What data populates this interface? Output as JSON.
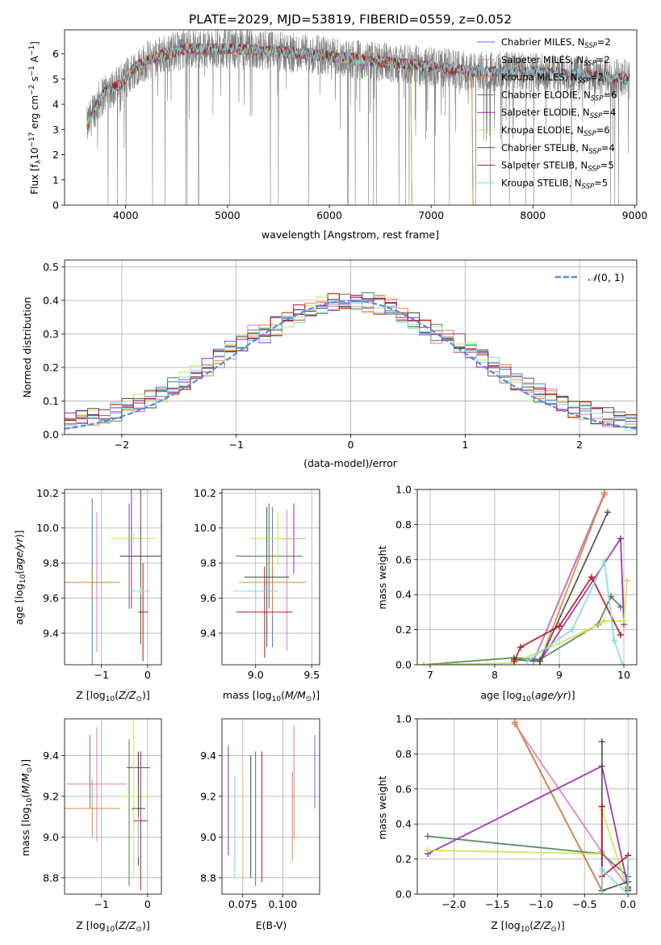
{
  "figure_title": "PLATE=2029, MJD=53819, FIBERID=0559, z=0.052",
  "colors": {
    "series": [
      "#5b6fe0",
      "#e377c2",
      "#e6862c",
      "#4d7f55",
      "#9b27b0",
      "#c9e64a",
      "#4a4a4a",
      "#b8141e",
      "#7fd9e0"
    ],
    "data_spectrum": "#808080",
    "gaussian": "#5b8bd9",
    "grid": "#b0b0b0"
  },
  "chart_data": [
    {
      "id": "spectrum",
      "type": "line",
      "xlabel": "wavelength [Angstrom, rest frame]",
      "ylabel": "Flux [f_λ10^-17 erg cm^-2 s^-1 A^-1]",
      "xlim": [
        3400,
        9020
      ],
      "ylim": [
        0,
        6.95
      ],
      "xticks": [
        4000,
        5000,
        6000,
        7000,
        8000,
        9000
      ],
      "yticks": [
        0,
        1,
        2,
        3,
        4,
        5,
        6
      ],
      "grid": false,
      "legend_position": "top-right",
      "legend": [
        {
          "name": "Chabrier MILES, N",
          "sub": "SSP",
          "suffix": "=2"
        },
        {
          "name": "Salpeter MILES, N",
          "sub": "SSP",
          "suffix": "=2"
        },
        {
          "name": "Kroupa MILES, N",
          "sub": "SSP",
          "suffix": "=2"
        },
        {
          "name": "Chabrier ELODIE, N",
          "sub": "SSP",
          "suffix": "=6"
        },
        {
          "name": "Salpeter ELODIE, N",
          "sub": "SSP",
          "suffix": "=4"
        },
        {
          "name": "Kroupa ELODIE, N",
          "sub": "SSP",
          "suffix": "=6"
        },
        {
          "name": "Chabrier STELIB, N",
          "sub": "SSP",
          "suffix": "=4"
        },
        {
          "name": "Salpeter STELIB, N",
          "sub": "SSP",
          "suffix": "=5"
        },
        {
          "name": "Kroupa STELIB, N",
          "sub": "SSP",
          "suffix": "=5"
        }
      ],
      "data_range": [
        3620,
        8950
      ],
      "continuum_knots": [
        [
          3620,
          3.1
        ],
        [
          3700,
          3.9
        ],
        [
          3800,
          4.5
        ],
        [
          3950,
          4.8
        ],
        [
          4000,
          5.0
        ],
        [
          4100,
          5.5
        ],
        [
          4300,
          5.9
        ],
        [
          4600,
          6.2
        ],
        [
          5000,
          6.2
        ],
        [
          5500,
          6.1
        ],
        [
          6000,
          5.9
        ],
        [
          6500,
          5.7
        ],
        [
          7000,
          5.5
        ],
        [
          7400,
          5.3
        ],
        [
          8000,
          5.3
        ],
        [
          8500,
          5.15
        ],
        [
          8950,
          5.0
        ]
      ],
      "model_end": {
        "MILES": 7400,
        "ELODIE": 6800,
        "STELIB": 8950
      }
    },
    {
      "id": "residuals",
      "type": "line",
      "xlabel": "(data-model)/error",
      "ylabel": "Normed distribution",
      "xlim": [
        -2.5,
        2.5
      ],
      "ylim": [
        0,
        0.52
      ],
      "xticks": [
        -2,
        -1,
        0,
        1,
        2
      ],
      "yticks": [
        0.0,
        0.1,
        0.2,
        0.3,
        0.4,
        0.5
      ],
      "grid": true,
      "legend_position": "top-right",
      "gaussian_label": "N(0,1)",
      "bin_width": 0.1,
      "bin_start": -2.5,
      "base_values": [
        0.03,
        0.035,
        0.04,
        0.045,
        0.05,
        0.055,
        0.06,
        0.07,
        0.08,
        0.085,
        0.095,
        0.11,
        0.125,
        0.14,
        0.155,
        0.17,
        0.19,
        0.205,
        0.225,
        0.24,
        0.26,
        0.28,
        0.3,
        0.32,
        0.34,
        0.36,
        0.375,
        0.385,
        0.39,
        0.39,
        0.4,
        0.41,
        0.42,
        0.43,
        0.41,
        0.39,
        0.38,
        0.36,
        0.34,
        0.32,
        0.3,
        0.28,
        0.26,
        0.24,
        0.22,
        0.2,
        0.18,
        0.16,
        0.14,
        0.12,
        0.1,
        0.09,
        0.08,
        0.07,
        0.06,
        0.055,
        0.05,
        0.045,
        0.04,
        0.04,
        0.04,
        0.035,
        0.035,
        0.03,
        0.03,
        0.03,
        0.03,
        0.03,
        0.03,
        0.03,
        0.03,
        0.03,
        0.03,
        0.03,
        0.03,
        0.03,
        0.03,
        0.03,
        0.03,
        0.03
      ]
    },
    {
      "id": "age_vs_Z",
      "type": "scatter",
      "xlabel": "Z [log10(Z/Z⊙)]",
      "ylabel": "age [log10(age/yr)]",
      "xlim": [
        -1.8,
        0.3
      ],
      "ylim": [
        9.22,
        10.22
      ],
      "xticks": [
        -1,
        0
      ],
      "yticks": [
        9.4,
        9.6,
        9.8,
        10.0,
        10.2
      ],
      "grid": true,
      "points": [
        {
          "x": -1.2,
          "xerr": 0.0,
          "y": 9.69,
          "yerr": 0.48
        },
        {
          "x": -1.1,
          "xerr": 0.0,
          "y": 9.69,
          "yerr": 0.4
        },
        {
          "x": -1.2,
          "xerr": 0.6,
          "y": 9.69,
          "yerr": 0.09
        },
        {
          "x": -0.4,
          "xerr": 0.0,
          "y": 9.84,
          "yerr": 0.3
        },
        {
          "x": -0.35,
          "xerr": 0.0,
          "y": 9.94,
          "yerr": 0.4
        },
        {
          "x": -0.3,
          "xerr": 0.5,
          "y": 9.94,
          "yerr": 0.03
        },
        {
          "x": -0.15,
          "xerr": 0.45,
          "y": 9.84,
          "yerr": 0.5
        },
        {
          "x": -0.1,
          "xerr": 0.1,
          "y": 9.52,
          "yerr": 0.28
        },
        {
          "x": -0.15,
          "xerr": 0.2,
          "y": 9.64,
          "yerr": 0.02
        }
      ]
    },
    {
      "id": "age_vs_mass",
      "type": "scatter",
      "xlabel": "mass [log10(M/M⊙)]",
      "ylabel": "",
      "xlim": [
        8.7,
        9.57
      ],
      "ylim": [
        9.22,
        10.22
      ],
      "xticks": [
        9.0,
        9.5
      ],
      "yticks": [
        9.4,
        9.6,
        9.8,
        10.0,
        10.2
      ],
      "grid": true,
      "points": [
        {
          "x": 9.15,
          "xerr": 0.02,
          "y": 9.72,
          "yerr": 0.4
        },
        {
          "x": 9.28,
          "xerr": 0.0,
          "y": 9.7,
          "yerr": 0.4
        },
        {
          "x": 9.15,
          "xerr": 0.3,
          "y": 9.69,
          "yerr": 0.18
        },
        {
          "x": 9.12,
          "xerr": 0.3,
          "y": 9.84,
          "yerr": 0.3
        },
        {
          "x": 9.34,
          "xerr": 0.1,
          "y": 9.94,
          "yerr": 0.2
        },
        {
          "x": 9.2,
          "xerr": 0.25,
          "y": 9.94,
          "yerr": 0.15
        },
        {
          "x": 9.1,
          "xerr": 0.2,
          "y": 9.72,
          "yerr": 0.4
        },
        {
          "x": 9.08,
          "xerr": 0.25,
          "y": 9.52,
          "yerr": 0.26
        },
        {
          "x": 9.0,
          "xerr": 0.2,
          "y": 9.64,
          "yerr": 0.06
        }
      ]
    },
    {
      "id": "weight_vs_age",
      "type": "line",
      "xlabel": "age [log10(age/yr)]",
      "ylabel": "mass weight",
      "xlim": [
        6.8,
        10.2
      ],
      "ylim": [
        0,
        1
      ],
      "xticks": [
        7,
        8,
        9,
        10
      ],
      "yticks": [
        0.0,
        0.2,
        0.4,
        0.6,
        0.8,
        1.0
      ],
      "grid": true,
      "series": [
        {
          "x": [
            8.6,
            9.7
          ],
          "y": [
            0.02,
            0.98
          ]
        },
        {
          "x": [
            8.6,
            9.7
          ],
          "y": [
            0.02,
            0.97
          ]
        },
        {
          "x": [
            8.7,
            9.7
          ],
          "y": [
            0.02,
            0.98
          ]
        },
        {
          "x": [
            6.9,
            8.3,
            8.7,
            9.6,
            9.8,
            9.95
          ],
          "y": [
            0.0,
            0.04,
            0.03,
            0.23,
            0.39,
            0.33
          ]
        },
        {
          "x": [
            8.7,
            9.95,
            10.0
          ],
          "y": [
            0.02,
            0.72,
            0.23
          ]
        },
        {
          "x": [
            6.9,
            8.3,
            9.4,
            9.7,
            10.0,
            10.05
          ],
          "y": [
            0.0,
            0.01,
            0.19,
            0.25,
            0.25,
            0.48
          ]
        },
        {
          "x": [
            8.3,
            8.7,
            9.75
          ],
          "y": [
            0.03,
            0.02,
            0.87
          ]
        },
        {
          "x": [
            8.3,
            8.4,
            9.0,
            9.5,
            9.95
          ],
          "y": [
            0.02,
            0.1,
            0.22,
            0.5,
            0.17
          ]
        },
        {
          "x": [
            8.5,
            9.2,
            9.7,
            9.85,
            9.98
          ],
          "y": [
            0.02,
            0.2,
            0.59,
            0.14,
            0.0
          ]
        }
      ]
    },
    {
      "id": "mass_vs_Z",
      "type": "scatter",
      "xlabel": "Z [log10(Z/Z⊙)]",
      "ylabel": "mass [log10(M/M⊙)]",
      "xlim": [
        -1.8,
        0.3
      ],
      "ylim": [
        8.72,
        9.58
      ],
      "xticks": [
        -1,
        0
      ],
      "yticks": [
        8.8,
        9.0,
        9.2,
        9.4
      ],
      "grid": true,
      "points": [
        {
          "x": -1.25,
          "xerr": 0.0,
          "y": 9.32,
          "yerr": 0.18
        },
        {
          "x": -1.1,
          "xerr": 0.65,
          "y": 9.26,
          "yerr": 0.28
        },
        {
          "x": -1.2,
          "xerr": 0.6,
          "y": 9.14,
          "yerr": 0.14
        },
        {
          "x": -0.4,
          "xerr": 0.0,
          "y": 9.12,
          "yerr": 0.36
        },
        {
          "x": -0.2,
          "xerr": 0.25,
          "y": 9.34,
          "yerr": 0.08
        },
        {
          "x": -0.3,
          "xerr": 0.3,
          "y": 9.2,
          "yerr": 0.4
        },
        {
          "x": -0.2,
          "xerr": 0.15,
          "y": 9.14,
          "yerr": 0.28
        },
        {
          "x": -0.15,
          "xerr": 0.15,
          "y": 9.08,
          "yerr": 0.34
        },
        {
          "x": -0.2,
          "xerr": 0.0,
          "y": 9.0,
          "yerr": 0.1
        }
      ]
    },
    {
      "id": "mass_vs_EBV",
      "type": "scatter",
      "xlabel": "E(B-V)",
      "ylabel": "",
      "xlim": [
        0.062,
        0.123
      ],
      "ylim": [
        8.72,
        9.58
      ],
      "xticks": [
        0.075,
        0.1
      ],
      "yticks": [
        8.8,
        9.0,
        9.2,
        9.4
      ],
      "grid": true,
      "points": [
        {
          "x": 0.12,
          "xerr": 0.0,
          "y": 9.32,
          "yerr": 0.18
        },
        {
          "x": 0.107,
          "xerr": 0.0,
          "y": 9.27,
          "yerr": 0.28
        },
        {
          "x": 0.106,
          "xerr": 0.0,
          "y": 9.1,
          "yerr": 0.22
        },
        {
          "x": 0.083,
          "xerr": 0.0,
          "y": 9.09,
          "yerr": 0.33
        },
        {
          "x": 0.066,
          "xerr": 0.0,
          "y": 9.18,
          "yerr": 0.27
        },
        {
          "x": 0.075,
          "xerr": 0.0,
          "y": 9.05,
          "yerr": 0.25
        },
        {
          "x": 0.08,
          "xerr": 0.0,
          "y": 9.1,
          "yerr": 0.3
        },
        {
          "x": 0.087,
          "xerr": 0.0,
          "y": 9.1,
          "yerr": 0.32
        },
        {
          "x": 0.07,
          "xerr": 0.0,
          "y": 9.05,
          "yerr": 0.25
        }
      ]
    },
    {
      "id": "weight_vs_Z",
      "type": "line",
      "xlabel": "Z [log10(Z/Z⊙)]",
      "ylabel": "mass weight",
      "xlim": [
        -2.42,
        0.1
      ],
      "ylim": [
        0,
        1
      ],
      "xticks": [
        -2.0,
        -1.5,
        -1.0,
        -0.5,
        0.0
      ],
      "yticks": [
        0.0,
        0.2,
        0.4,
        0.6,
        0.8,
        1.0
      ],
      "grid": true,
      "series": [
        {
          "x": [
            -1.3,
            -0.3
          ],
          "y": [
            0.98,
            0.02
          ]
        },
        {
          "x": [
            -1.3,
            -0.3,
            0.0
          ],
          "y": [
            0.97,
            0.24,
            0.04
          ]
        },
        {
          "x": [
            -1.3,
            -0.3
          ],
          "y": [
            0.98,
            0.02
          ]
        },
        {
          "x": [
            -2.3,
            -0.3,
            0.0,
            0.0
          ],
          "y": [
            0.33,
            0.23,
            0.1,
            0.03
          ]
        },
        {
          "x": [
            -2.3,
            -0.3,
            0.0
          ],
          "y": [
            0.23,
            0.73,
            0.04
          ]
        },
        {
          "x": [
            -2.3,
            -0.3,
            -0.3,
            0.0
          ],
          "y": [
            0.25,
            0.23,
            0.48,
            0.02
          ]
        },
        {
          "x": [
            -0.3,
            -0.3,
            0.0
          ],
          "y": [
            0.87,
            0.02,
            0.07
          ]
        },
        {
          "x": [
            -0.3,
            -0.3,
            0.0,
            0.0
          ],
          "y": [
            0.5,
            0.1,
            0.22,
            0.02
          ]
        },
        {
          "x": [
            -0.3,
            -0.3,
            0.0,
            0.0
          ],
          "y": [
            0.0,
            0.14,
            0.0,
            0.2
          ]
        }
      ]
    }
  ]
}
